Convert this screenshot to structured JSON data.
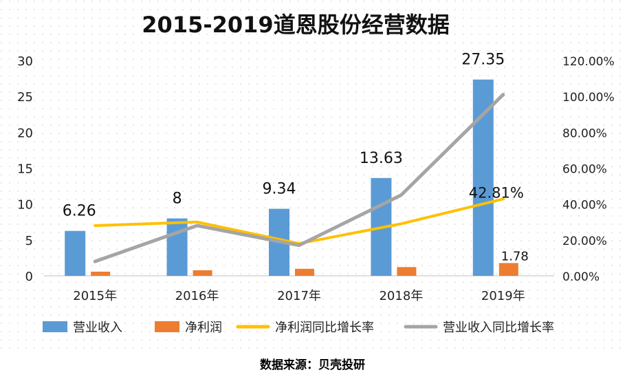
{
  "chart_data": {
    "type": "bar",
    "title": "2015-2019道恩股份经营数据",
    "categories": [
      "2015年",
      "2016年",
      "2017年",
      "2018年",
      "2019年"
    ],
    "series": [
      {
        "name": "营业收入",
        "kind": "bar",
        "axis": "left",
        "color": "#5B9BD5",
        "values": [
          6.26,
          8,
          9.34,
          13.63,
          27.35
        ]
      },
      {
        "name": "净利润",
        "kind": "bar",
        "axis": "left",
        "color": "#ED7D31",
        "values": [
          0.58,
          0.78,
          0.98,
          1.22,
          1.78
        ]
      },
      {
        "name": "净利润同比增长率",
        "kind": "line",
        "axis": "right",
        "color": "#FFC000",
        "values": [
          28.0,
          30.0,
          18.0,
          29.0,
          42.81
        ]
      },
      {
        "name": "营业收入同比增长率",
        "kind": "line",
        "axis": "right",
        "color": "#A5A5A5",
        "values": [
          8.0,
          28.0,
          17.0,
          45.0,
          101.0
        ]
      }
    ],
    "data_labels": {
      "revenue": [
        "6.26",
        "8",
        "9.34",
        "13.63",
        "27.35"
      ],
      "net_profit_2019": "1.78",
      "profit_growth_2019": "42.81%"
    },
    "left_axis": {
      "min": 0,
      "max": 30,
      "ticks": [
        "0",
        "5",
        "10",
        "15",
        "20",
        "25",
        "30"
      ]
    },
    "right_axis": {
      "min": 0,
      "max": 120,
      "ticks": [
        "0.00%",
        "20.00%",
        "40.00%",
        "60.00%",
        "80.00%",
        "100.00%",
        "120.00%"
      ]
    },
    "grid": "dotted background",
    "legend_position": "bottom"
  },
  "source_text": "数据来源：贝壳投研"
}
